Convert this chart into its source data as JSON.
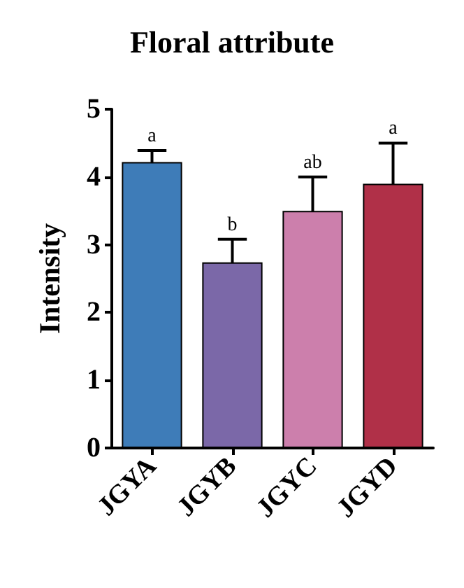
{
  "chart_data": {
    "type": "bar",
    "title": "Floral attribute",
    "ylabel": "Intensity",
    "categories": [
      "JGYA",
      "JGYB",
      "JGYC",
      "JGYD"
    ],
    "values": [
      4.22,
      2.74,
      3.5,
      3.9
    ],
    "colors": [
      "#3e7cb8",
      "#7b68a8",
      "#cc7fac",
      "#b03048"
    ],
    "errors": [
      0.17,
      0.34,
      0.5,
      0.6
    ],
    "ylim": [
      0,
      5
    ],
    "yticks": [
      0,
      1,
      2,
      3,
      4,
      5
    ],
    "grid": false,
    "annotations": [
      {
        "text": "a",
        "x": "JGYA",
        "y": 4.39
      },
      {
        "text": "b",
        "x": "JGYB",
        "y": 3.08
      },
      {
        "text": "ab",
        "x": "JGYC",
        "y": 4.0
      },
      {
        "text": "a",
        "x": "JGYD",
        "y": 4.5
      }
    ]
  }
}
